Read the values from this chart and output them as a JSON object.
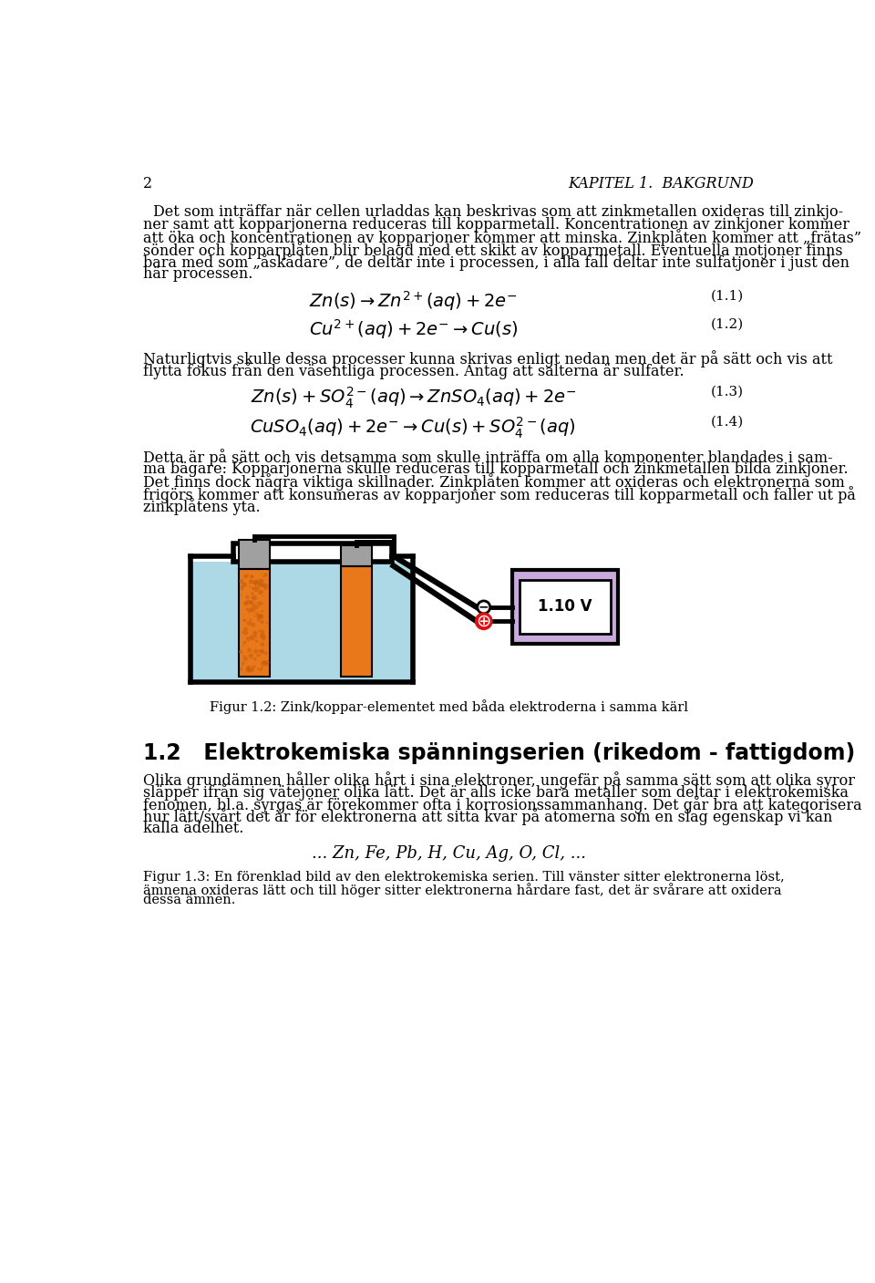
{
  "page_number": "2",
  "header_right": "KAPITEL 1.  BAKGRUND",
  "body_text_1": "Det som inträffar när cellen urladdas kan beskrivas som att zinkmetallen oxideras till zinkjo-\nner samt att kopparjonerna reduceras till kopparmetall. Koncentrationen av zinkjoner kommer\natt öka och koncentrationen av kopparjoner kommer att minska. Zinkplåten kommer att „frätas”\nsönder och kopparplåten blir belagd med ett skikt av kopparmetall. Eventuella motjoner finns\nbara med som „åskådare”, de deltar inte i processen, i alla fall deltar inte sulfatjoner i just den\nhär processen.",
  "eq1_label": "(1.1)",
  "eq2_label": "(1.2)",
  "body_text_2": "Naturligtvis skulle dessa processer kunna skrivas enligt nedan men det är på sätt och vis att\nflytta fokus från den väsentliga processen. Antag att salterna är sulfater.",
  "eq3_label": "(1.3)",
  "eq4_label": "(1.4)",
  "body_text_3": "Detta är på sätt och vis detsamma som skulle inträffa om alla komponenter blandades i sam-\nma bägare: Kopparjonerna skulle reduceras till kopparmetall och zinkmetallen bilda zinkjoner.\nDet finns dock några viktiga skillnader. Zinkplåten kommer att oxideras och elektronerna som\nfrigörs kommer att konsumeras av kopparjoner som reduceras till kopparmetall och faller ut på\nzinkplåtens yta.",
  "fig_caption": "Figur 1.2: Zink/koppar-elementet med båda elektroderna i samma kärl",
  "section_title": "1.2   Elektrokemiska spänningserien (rikedom - fattigdom)",
  "body_text_4": "Olika grundämnen håller olika hårt i sina elektroner, ungefär på samma sätt som att olika syror\nsläpper ifrån sig vätejoner olika lätt. Det är alls icke bara metaller som deltar i elektrokemiska\nfenomen, bl.a. syrgas är förekommer ofta i korrosionssammanhang. Det går bra att kategorisera\nhur lätt/svårt det är för elektronerna att sitta kvar på atomerna som en slag egenskap vi kan\nkalla ädelhet.",
  "series_text": "... Zn, Fe, Pb, H, Cu, Ag, O, Cl, ...",
  "fig3_caption": "Figur 1.3: En förenklad bild av den elektrokemiska serien. Till vänster sitter elektronerna löst,\nämnena oxideras lätt och till höger sitter elektronerna hårdare fast, det är svårare att oxidera\ndessa ämnen.",
  "background_color": "#ffffff",
  "text_color": "#000000",
  "body_fontsize": 11.5,
  "lh": 17.5,
  "eq_fontsize": 14,
  "section_fontsize": 17
}
